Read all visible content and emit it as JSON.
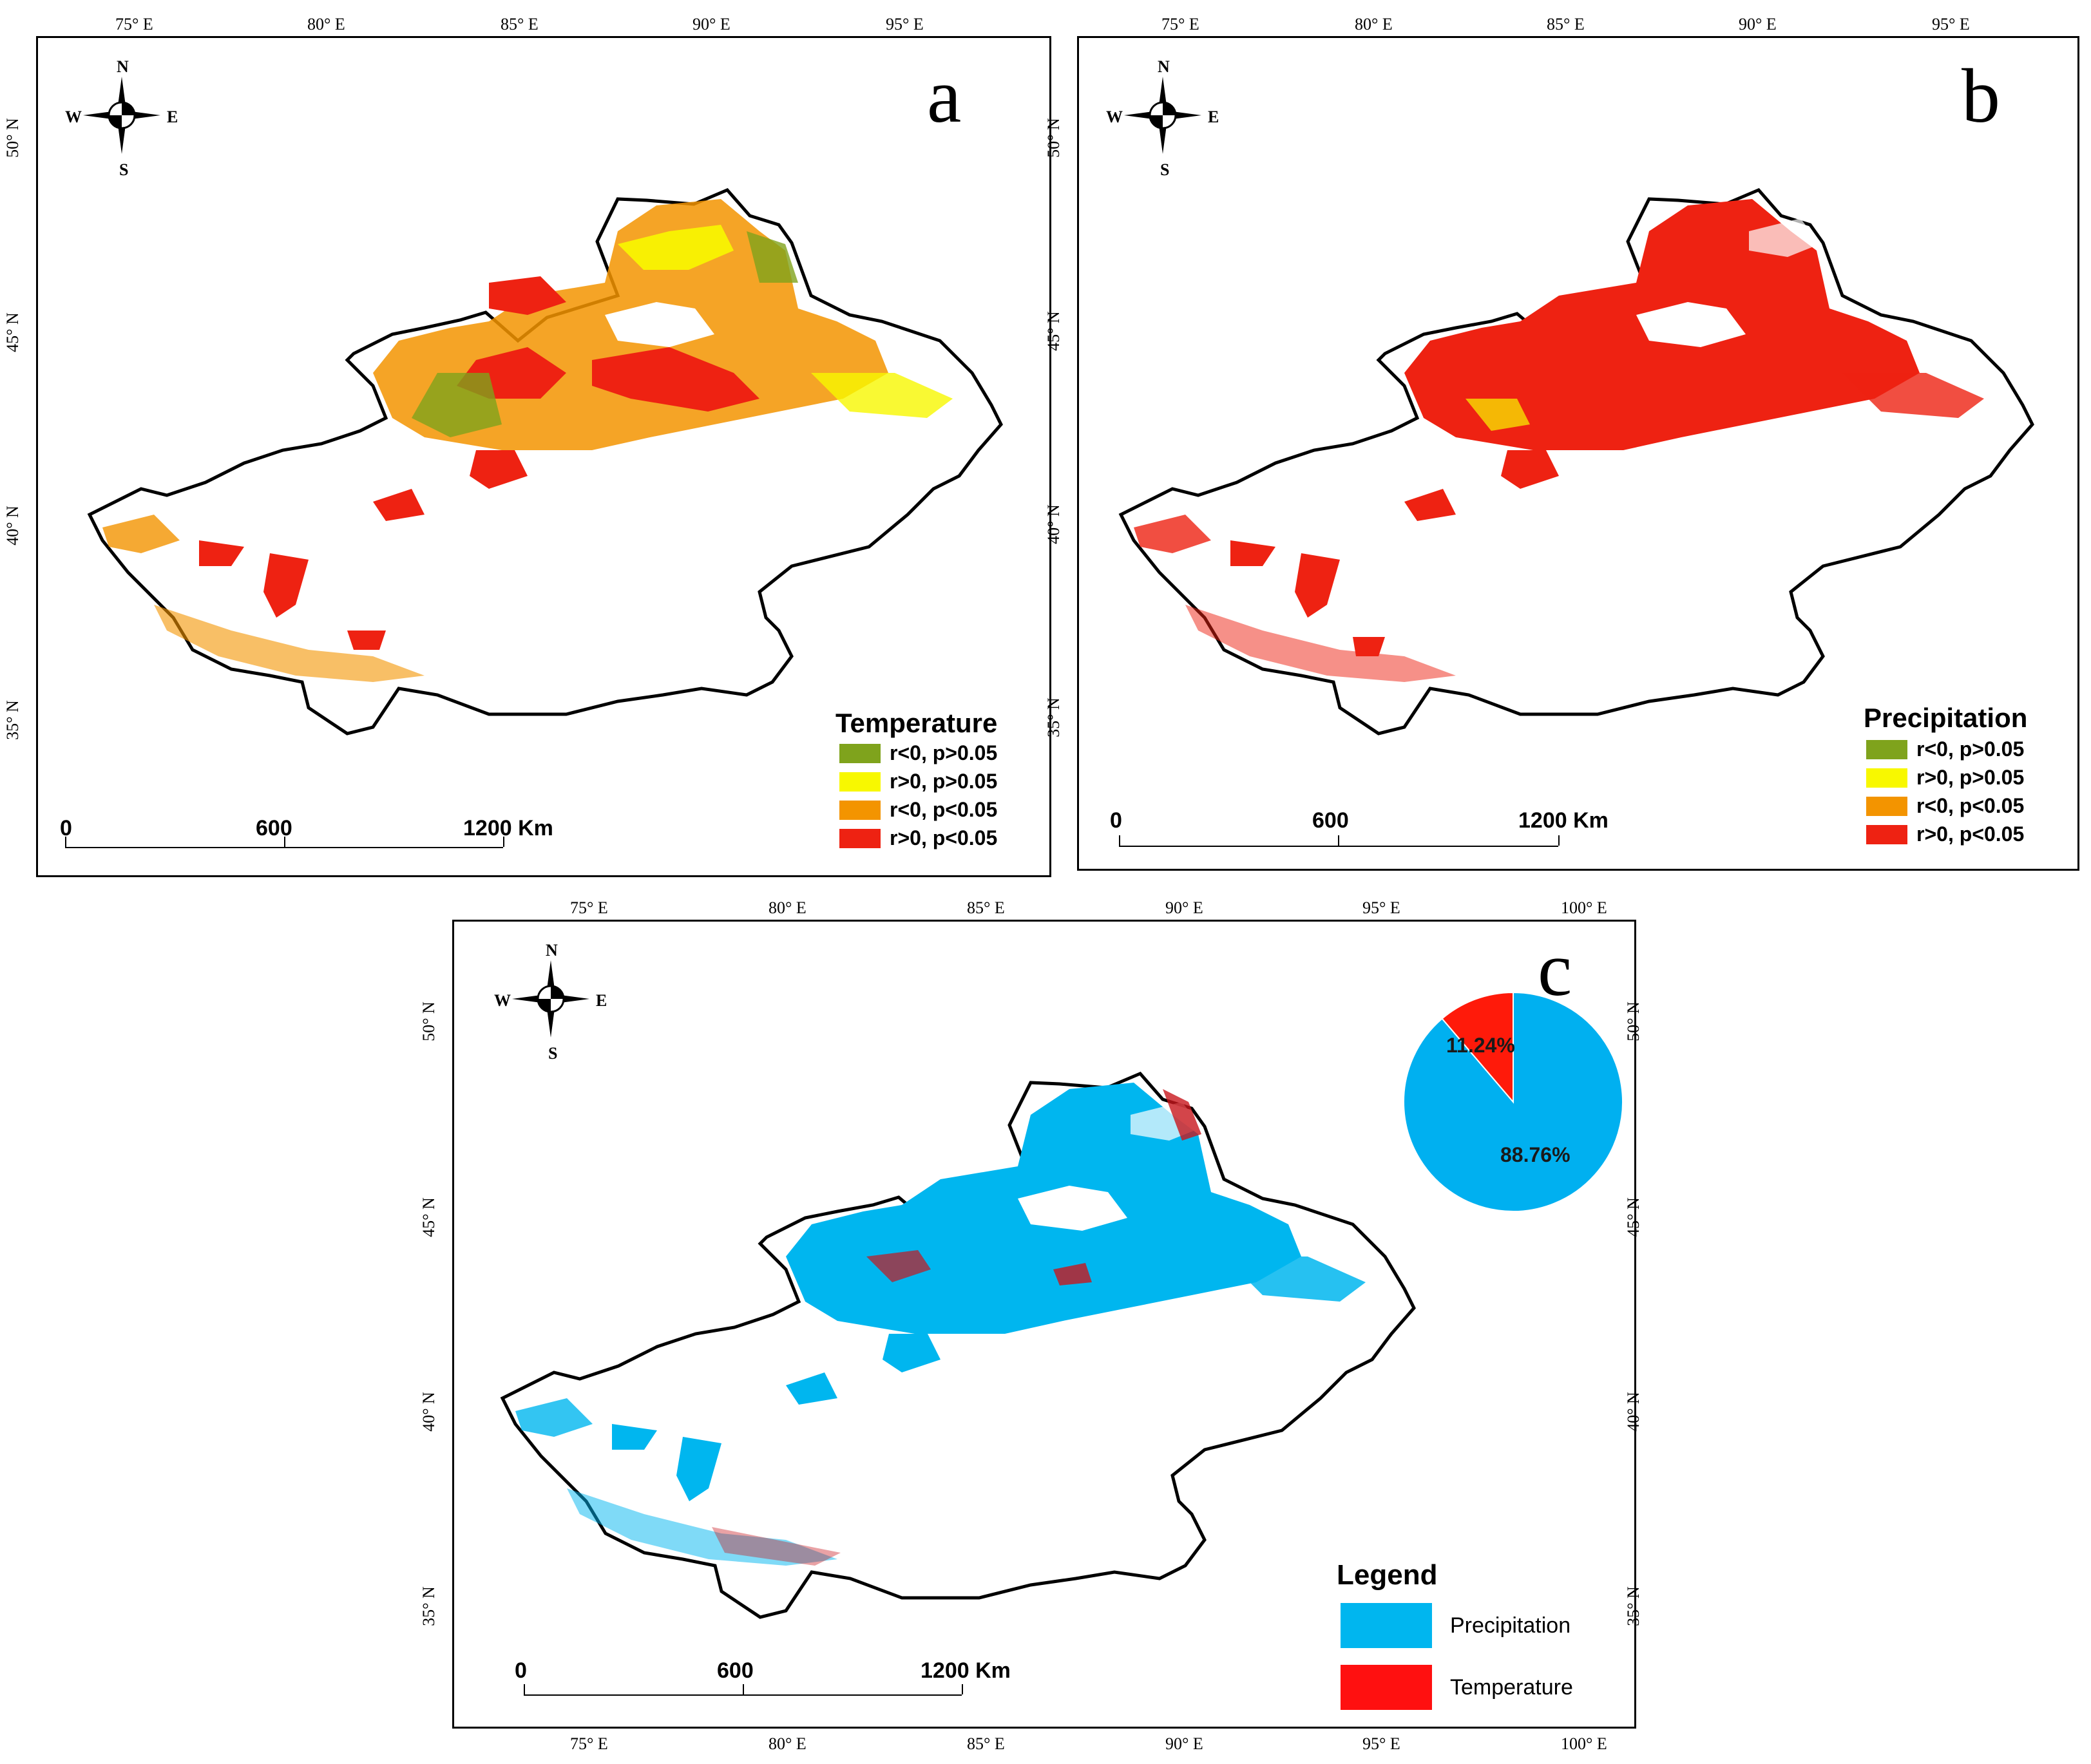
{
  "panels": {
    "a": {
      "letter": "a",
      "top_ticks": [
        "75° E",
        "80° E",
        "85° E",
        "90° E",
        "95° E"
      ],
      "left_ticks": [
        "50° N",
        "45° N",
        "40° N",
        "35° N"
      ],
      "legend": {
        "title": "Temperature",
        "items": [
          {
            "label": "r<0, p>0.05",
            "color": "#7fa31c"
          },
          {
            "label": "r>0, p>0.05",
            "color": "#f8f800"
          },
          {
            "label": "r<0, p<0.05",
            "color": "#f39400"
          },
          {
            "label": "r>0, p<0.05",
            "color": "#ee2212"
          }
        ]
      },
      "scale": [
        "0",
        "600",
        "1200 Km"
      ]
    },
    "b": {
      "letter": "b",
      "top_ticks": [
        "75° E",
        "80° E",
        "85° E",
        "90° E",
        "95° E"
      ],
      "left_ticks": [
        "50° N",
        "45° N",
        "40° N",
        "35° N"
      ],
      "legend": {
        "title": "Precipitation",
        "items": [
          {
            "label": "r<0, p>0.05",
            "color": "#7fa31c"
          },
          {
            "label": "r>0, p>0.05",
            "color": "#f8f800"
          },
          {
            "label": "r<0, p<0.05",
            "color": "#f39400"
          },
          {
            "label": "r>0, p<0.05",
            "color": "#ee2212"
          }
        ]
      },
      "scale": [
        "0",
        "600",
        "1200 Km"
      ]
    },
    "c": {
      "letter": "c",
      "top_ticks": [
        "75° E",
        "80° E",
        "85° E",
        "90° E",
        "95° E",
        "100° E"
      ],
      "bottom_ticks": [
        "75° E",
        "80° E",
        "85° E",
        "90° E",
        "95° E",
        "100° E"
      ],
      "left_ticks": [
        "50° N",
        "45° N",
        "40° N",
        "35° N"
      ],
      "right_ticks": [
        "50° N",
        "45° N",
        "40° N",
        "35° N"
      ],
      "legend": {
        "title": "Legend",
        "items": [
          {
            "label": "Precipitation",
            "color": "#00b6ef"
          },
          {
            "label": "Temperature",
            "color": "#ff1010"
          }
        ]
      },
      "pie": {
        "slices": [
          {
            "label": "88.76%",
            "value": 88.76,
            "color": "#00b0f0"
          },
          {
            "label": "11.24%",
            "value": 11.24,
            "color": "#ff1a0a"
          }
        ]
      },
      "scale": [
        "0",
        "600",
        "1200 Km"
      ]
    }
  },
  "compass": {
    "n": "N",
    "s": "S",
    "e": "E",
    "w": "W"
  }
}
